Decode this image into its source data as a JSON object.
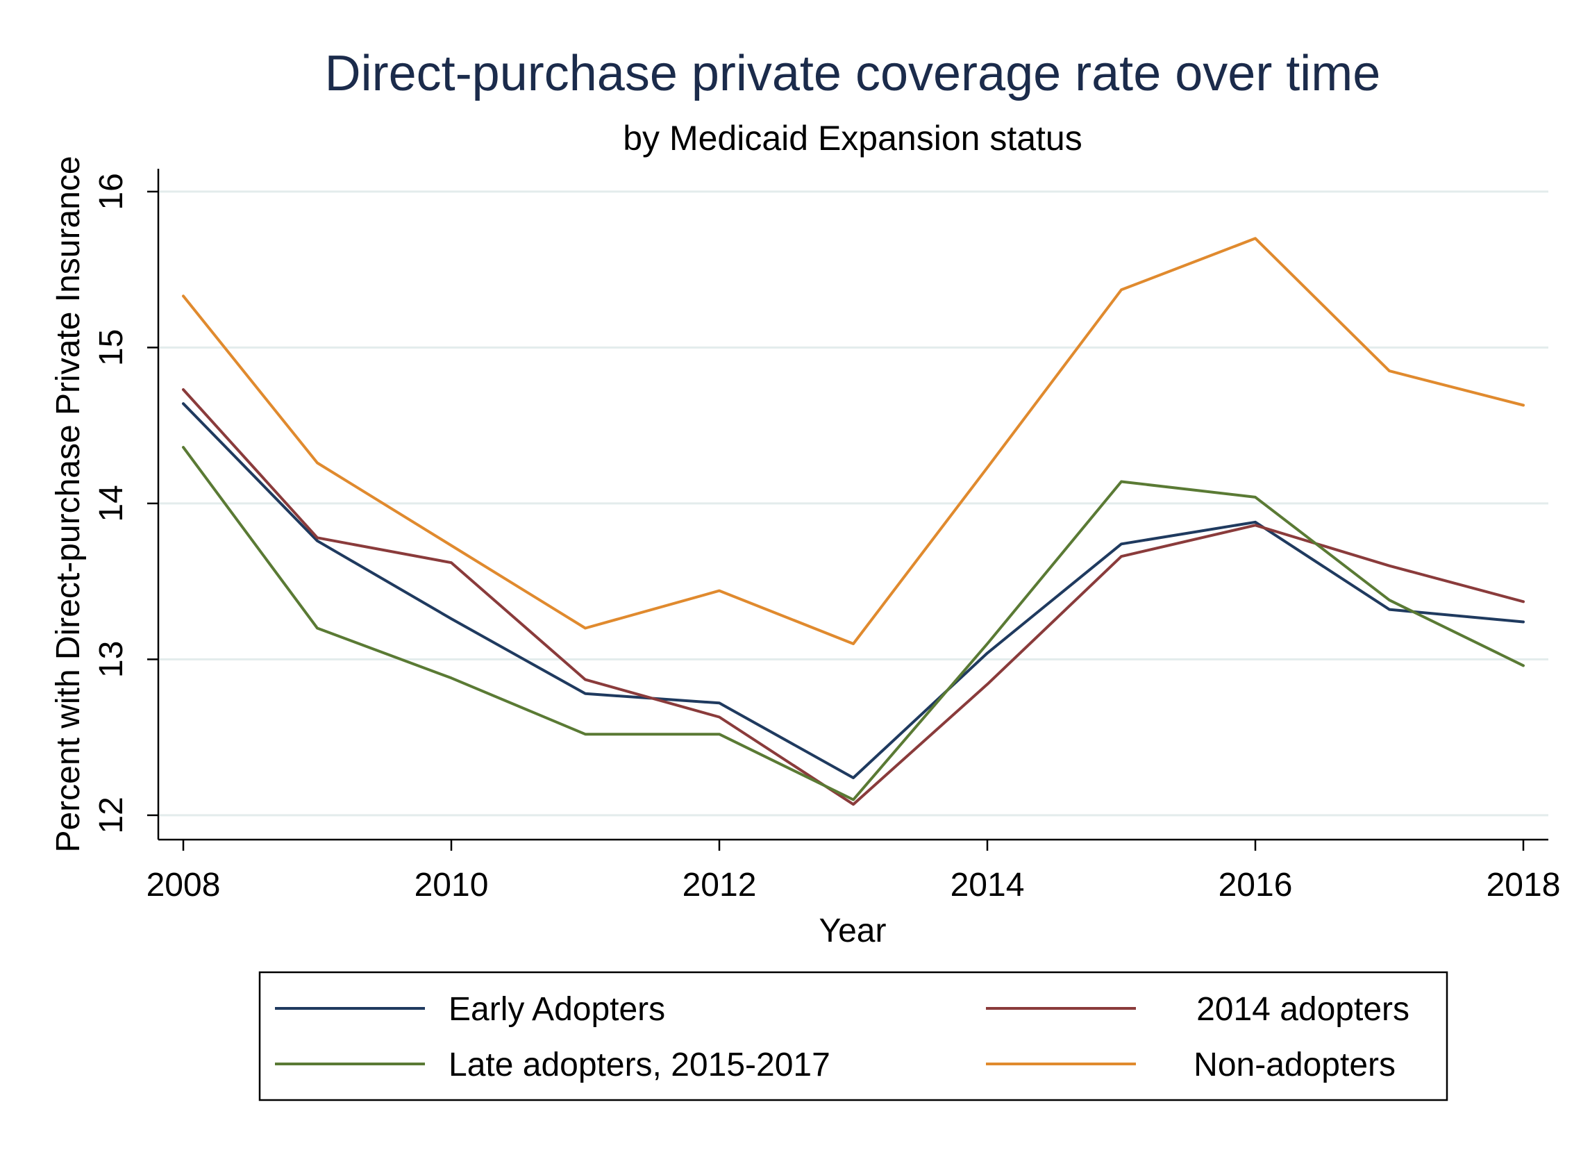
{
  "chart_data": {
    "type": "line",
    "title": "Direct-purchase private coverage rate over time",
    "subtitle": "by Medicaid Expansion status",
    "xlabel": "Year",
    "ylabel": "Percent with Direct-purchase Private Insurance",
    "x": [
      2008,
      2009,
      2010,
      2011,
      2012,
      2013,
      2014,
      2015,
      2016,
      2017,
      2018
    ],
    "xlim": [
      2008,
      2018
    ],
    "ylim": [
      11.85,
      16.2
    ],
    "x_ticks": [
      "2008",
      "2010",
      "2012",
      "2014",
      "2016",
      "2018"
    ],
    "y_ticks": [
      "12",
      "13",
      "14",
      "15",
      "16"
    ],
    "grid": true,
    "legend_position": "bottom",
    "series": [
      {
        "name": "Early Adopters",
        "color": "#1f3a5f",
        "values": [
          14.64,
          13.76,
          13.26,
          12.78,
          12.72,
          12.24,
          13.04,
          13.74,
          13.88,
          13.32,
          13.24
        ]
      },
      {
        "name": "2014 adopters",
        "color": "#8a3b3b",
        "values": [
          14.73,
          13.78,
          13.62,
          12.87,
          12.63,
          12.07,
          12.84,
          13.66,
          13.86,
          13.6,
          13.37
        ]
      },
      {
        "name": "Late adopters, 2015-2017",
        "color": "#5a7a34",
        "values": [
          14.36,
          13.2,
          12.88,
          12.52,
          12.52,
          12.1,
          13.1,
          14.14,
          14.04,
          13.38,
          12.96
        ]
      },
      {
        "name": "Non-adopters",
        "color": "#e08a2e",
        "values": [
          15.33,
          14.26,
          13.73,
          13.2,
          13.44,
          13.1,
          14.23,
          15.37,
          15.7,
          14.85,
          14.63
        ]
      }
    ]
  }
}
